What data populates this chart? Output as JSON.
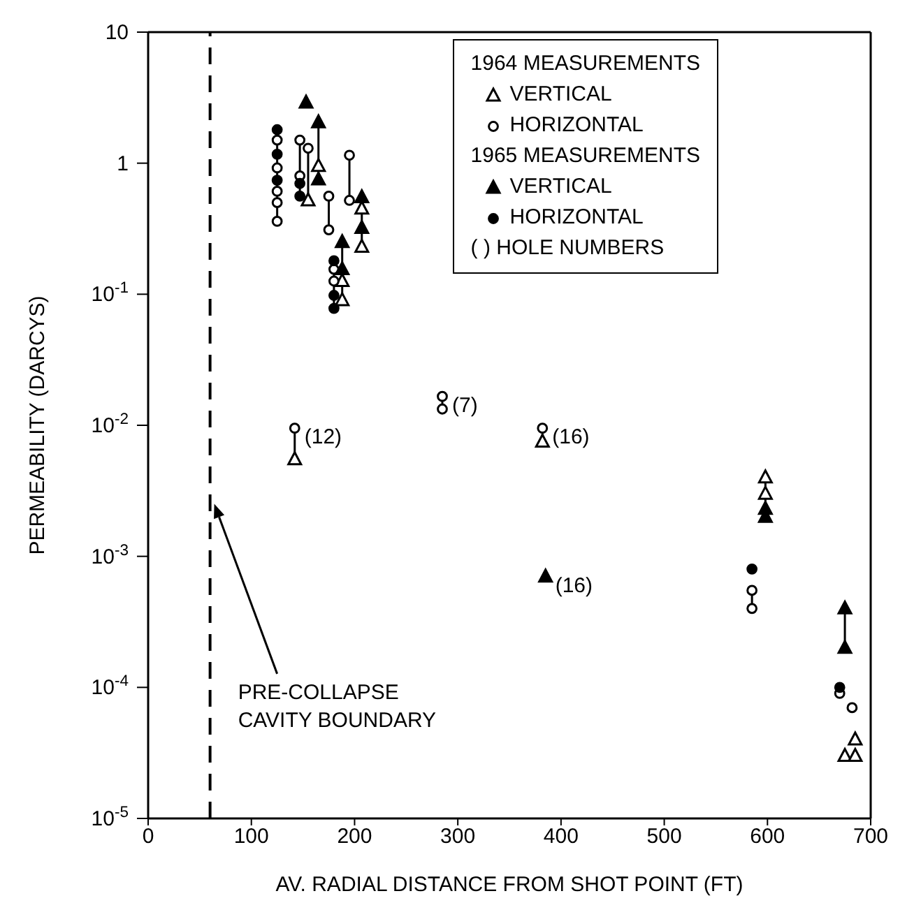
{
  "chart_data": {
    "type": "scatter",
    "xlabel": "AV. RADIAL DISTANCE FROM SHOT POINT (FT)",
    "ylabel": "PERMEABILITY (DARCYS)",
    "log": "y",
    "xlim": [
      0,
      700
    ],
    "xticks": [
      0,
      100,
      200,
      300,
      400,
      500,
      600,
      700
    ],
    "ylim": [
      1e-05,
      10
    ],
    "yticks": [
      {
        "value": 1e-05,
        "label": "10$^{-5}$"
      },
      {
        "value": 0.0001,
        "label": "10$^{-4}$"
      },
      {
        "value": 0.001,
        "label": "10$^{-3}$"
      },
      {
        "value": 0.01,
        "label": "10$^{-2}$"
      },
      {
        "value": 0.1,
        "label": "10$^{-1}$"
      },
      1,
      10
    ],
    "grid": false,
    "legend": "top right",
    "annotations": [
      "1964 MEASUREMENTS",
      "1965 MEASUREMENTS",
      "( ) HOLE NUMBERS",
      {
        "text": "(12)",
        "x": 142,
        "y": 0.0095
      },
      {
        "text": "(7)",
        "x": 285,
        "y": 0.0166
      },
      {
        "text": "(16)",
        "x": 382,
        "y": 0.0095
      },
      {
        "text": "(16)",
        "x": 385,
        "y": 0.0007
      }
    ],
    "ref_lines": [
      {
        "axis": "x",
        "value": 60,
        "label": "PRE-COLLAPSE CAVITY BOUNDARY",
        "line_style": "dashed",
        "color": "#000000"
      }
    ],
    "series": [
      {
        "type": "line",
        "color": "#000000",
        "line_style": "solid",
        "x": [
          125,
          125,
          null,
          147,
          147,
          null,
          155,
          155,
          null,
          165,
          165,
          null,
          175,
          175,
          null,
          195,
          195,
          null,
          207,
          207,
          null,
          180,
          180,
          null,
          188,
          188,
          null,
          142,
          142,
          null,
          285,
          285,
          null,
          382,
          382,
          null,
          585,
          585,
          null,
          598,
          598,
          null,
          675,
          675
        ],
        "values": [
          1.8,
          0.36,
          null,
          1.5,
          0.55,
          null,
          1.3,
          0.52,
          null,
          2.05,
          0.75,
          null,
          0.56,
          0.31,
          null,
          1.15,
          0.52,
          null,
          0.55,
          0.23,
          null,
          0.18,
          0.078,
          null,
          0.25,
          0.09,
          null,
          0.0095,
          0.0055,
          null,
          0.0166,
          0.0133,
          null,
          0.0095,
          0.0075,
          null,
          0.00055,
          0.0004,
          null,
          0.004,
          0.002,
          null,
          0.0004,
          0.0002
        ]
      },
      {
        "name": "VERTICAL",
        "color": "#000000",
        "marker": "triangle",
        "x": [
          155,
          165,
          207,
          207,
          188,
          188,
          142,
          382,
          598,
          598,
          685,
          675,
          685
        ],
        "values": [
          0.52,
          0.95,
          0.45,
          0.23,
          0.126,
          0.09,
          0.0055,
          0.0075,
          0.004,
          0.003,
          4e-05,
          3e-05,
          3e-05
        ]
      },
      {
        "name": "HORIZONTAL",
        "color": "#000000",
        "marker": "circle",
        "x": [
          125,
          125,
          125,
          125,
          125,
          147,
          147,
          155,
          175,
          175,
          195,
          195,
          180,
          180,
          142,
          285,
          285,
          382,
          585,
          585,
          670,
          682
        ],
        "values": [
          1.5,
          0.92,
          0.61,
          0.5,
          0.36,
          1.5,
          0.8,
          1.3,
          0.56,
          0.31,
          1.15,
          0.52,
          0.155,
          0.126,
          0.0095,
          0.0166,
          0.0133,
          0.0095,
          0.00055,
          0.0004,
          9e-05,
          7e-05
        ]
      },
      {
        "name": "VERTICAL",
        "color": "#000000",
        "marker": "triangle",
        "x": [
          153,
          165,
          165,
          207,
          207,
          188,
          188,
          385,
          598,
          598,
          675,
          675
        ],
        "values": [
          2.9,
          2.05,
          0.75,
          0.55,
          0.32,
          0.25,
          0.155,
          0.0007,
          0.0023,
          0.002,
          0.0004,
          0.0002
        ]
      },
      {
        "name": "HORIZONTAL",
        "color": "#000000",
        "marker": "circle",
        "x": [
          125,
          125,
          125,
          147,
          147,
          180,
          180,
          180,
          585,
          670
        ],
        "values": [
          1.8,
          1.17,
          0.74,
          0.7,
          0.56,
          0.18,
          0.098,
          0.078,
          0.0008,
          0.0001
        ]
      }
    ]
  }
}
